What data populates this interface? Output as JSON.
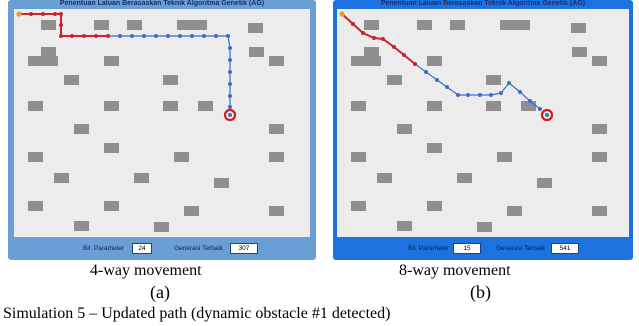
{
  "panel_a": {
    "title": "Penentuan Laluan Berasaskan Teknik Algoritma Genetik (AG)",
    "param_label": "Bil. Parameter",
    "param_value": "24",
    "gen_label": "Generasi Terbaik",
    "gen_value": "307",
    "caption": "4-way movement",
    "sublabel": "(a)"
  },
  "panel_b": {
    "title": "Penentuan Laluan Berasaskan Teknik Algoritma Genetik (AG)",
    "param_label": "Bil. Parameter",
    "param_value": "15",
    "gen_label": "Generasi Terbaik",
    "gen_value": "541",
    "caption": "8-way movement",
    "sublabel": "(b)"
  },
  "figure_caption": "Simulation 5 – Updated path (dynamic obstacle #1 detected)",
  "colors": {
    "obstacle": "#8f8f8f",
    "path_old": "#cc2233",
    "path_new": "#3a6fc8",
    "goal": "#d41a1a",
    "start": "#e8a020"
  }
}
